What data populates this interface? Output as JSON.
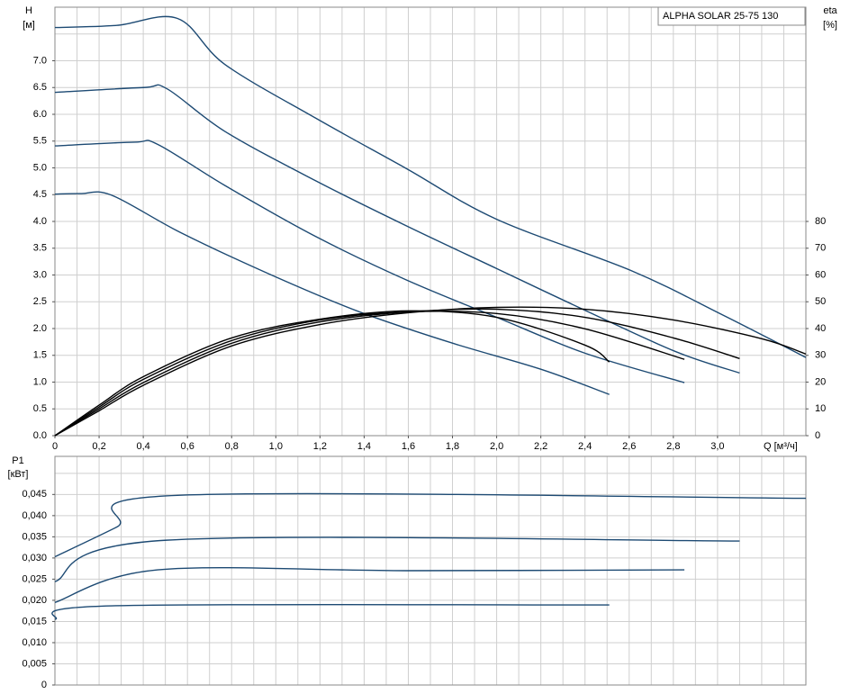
{
  "chart_data": [
    {
      "type": "line",
      "title": "ALPHA SOLAR 25-75  130",
      "ylabel": "H",
      "yunit": "[м]",
      "y2label": "eta",
      "y2unit": "[%]",
      "xlabel": "Q [м³/ч]",
      "xlim": [
        0,
        3.4
      ],
      "xticks": [
        0,
        {
          "value": 0.2,
          "label": "0,2"
        },
        {
          "value": 0.4,
          "label": "0,4"
        },
        {
          "value": 0.6,
          "label": "0,6"
        },
        {
          "value": 0.8,
          "label": "0,8"
        },
        {
          "value": 1.0,
          "label": "1,0"
        },
        {
          "value": 1.2,
          "label": "1,2"
        },
        {
          "value": 1.4,
          "label": "1,4"
        },
        {
          "value": 1.6,
          "label": "1,6"
        },
        {
          "value": 1.8,
          "label": "1,8"
        },
        {
          "value": 2.0,
          "label": "2,0"
        },
        {
          "value": 2.2,
          "label": "2,2"
        },
        {
          "value": 2.4,
          "label": "2,4"
        },
        {
          "value": 2.6,
          "label": "2,6"
        },
        {
          "value": 2.8,
          "label": "2,8"
        },
        {
          "value": 3.0,
          "label": "3,0"
        }
      ],
      "ylim": [
        0,
        8
      ],
      "yticks": [
        {
          "value": 0,
          "label": "0.0"
        },
        0.5,
        {
          "value": 1,
          "label": "1.0"
        },
        1.5,
        {
          "value": 2,
          "label": "2.0"
        },
        2.5,
        {
          "value": 3,
          "label": "3.0"
        },
        3.5,
        {
          "value": 4,
          "label": "4.0"
        },
        4.5,
        {
          "value": 5,
          "label": "5.0"
        },
        5.5,
        {
          "value": 6,
          "label": "6.0"
        },
        6.5,
        {
          "value": 7,
          "label": "7.0"
        }
      ],
      "y2lim": [
        0,
        160
      ],
      "y2ticks": [
        0,
        10,
        20,
        30,
        40,
        50,
        60,
        70,
        80
      ],
      "grid": true,
      "series": [
        {
          "color": "#1d4a73",
          "x": [
            0,
            0.28,
            0.555,
            0.77,
            1.18,
            1.59,
            2.0,
            2.61,
            3.02,
            3.4
          ],
          "values": [
            7.62,
            7.66,
            7.79,
            6.93,
            5.93,
            4.99,
            4.04,
            3.08,
            2.26,
            1.46
          ]
        },
        {
          "color": "#1d4a73",
          "x": [
            0,
            0.4,
            0.506,
            0.77,
            1.18,
            1.59,
            2.0,
            2.4,
            2.81,
            3.1
          ],
          "values": [
            6.41,
            6.5,
            6.48,
            5.68,
            4.76,
            3.92,
            3.12,
            2.34,
            1.57,
            1.17
          ]
        },
        {
          "color": "#1d4a73",
          "x": [
            0,
            0.36,
            0.465,
            0.77,
            1.18,
            1.59,
            2.0,
            2.4,
            2.85
          ],
          "values": [
            5.41,
            5.48,
            5.44,
            4.67,
            3.72,
            2.91,
            2.21,
            1.54,
            0.99
          ]
        },
        {
          "color": "#1d4a73",
          "x": [
            0,
            0.12,
            0.257,
            0.57,
            0.98,
            1.38,
            1.79,
            2.2,
            2.51
          ],
          "values": [
            4.51,
            4.52,
            4.49,
            3.79,
            3.0,
            2.31,
            1.74,
            1.24,
            0.77
          ]
        },
        {
          "color": "#000000",
          "axis": "y2",
          "x": [
            0,
            0.2,
            0.4,
            0.8,
            1.2,
            1.6,
            2.0,
            2.4,
            2.51
          ],
          "values": [
            0,
            11.4,
            22,
            36.5,
            43.5,
            46.6,
            44.2,
            33.8,
            27.5
          ]
        },
        {
          "color": "#000000",
          "axis": "y2",
          "x": [
            0,
            0.2,
            0.4,
            0.8,
            1.2,
            1.6,
            2.0,
            2.4,
            2.85
          ],
          "values": [
            0,
            10.7,
            21,
            35.5,
            43.2,
            46.2,
            45.6,
            39.9,
            28.5
          ]
        },
        {
          "color": "#000000",
          "axis": "y2",
          "x": [
            0,
            0.2,
            0.4,
            0.8,
            1.2,
            1.6,
            2.0,
            2.4,
            2.8,
            3.1
          ],
          "values": [
            0,
            10.0,
            19.8,
            34.5,
            42.5,
            46.2,
            47.2,
            44.2,
            36.5,
            28.8
          ]
        },
        {
          "color": "#000000",
          "axis": "y2",
          "x": [
            0,
            0.2,
            0.4,
            0.8,
            1.2,
            1.6,
            2.0,
            2.4,
            2.8,
            3.2,
            3.4
          ],
          "values": [
            0,
            9.3,
            18.8,
            33.5,
            41.5,
            45.9,
            47.9,
            47.2,
            43.2,
            36.2,
            30.5
          ]
        }
      ]
    },
    {
      "type": "line",
      "ylabel": "P1",
      "yunit": "[кВт]",
      "xlim": [
        0,
        3.4
      ],
      "ylim": [
        0,
        0.054
      ],
      "yticks": [
        0,
        {
          "value": 0.005,
          "label": "0,005"
        },
        {
          "value": 0.01,
          "label": "0,010"
        },
        {
          "value": 0.015,
          "label": "0,015"
        },
        {
          "value": 0.02,
          "label": "0,020"
        },
        {
          "value": 0.025,
          "label": "0,025"
        },
        {
          "value": 0.03,
          "label": "0,030"
        },
        {
          "value": 0.035,
          "label": "0,035"
        },
        {
          "value": 0.04,
          "label": "0,040"
        },
        {
          "value": 0.045,
          "label": "0,045"
        }
      ],
      "grid": true,
      "series": [
        {
          "color": "#1d4a73",
          "x": [
            0,
            0.28,
            0.555,
            3.4
          ],
          "values": [
            0.0303,
            0.0373,
            0.0448,
            0.0441
          ]
        },
        {
          "color": "#1d4a73",
          "x": [
            0,
            0.506,
            3.1
          ],
          "values": [
            0.0244,
            0.0342,
            0.034
          ]
        },
        {
          "color": "#1d4a73",
          "x": [
            0,
            0.465,
            1.59,
            2.85
          ],
          "values": [
            0.0195,
            0.0272,
            0.027,
            0.0272
          ]
        },
        {
          "color": "#1d4a73",
          "x": [
            0,
            0.257,
            2.51
          ],
          "values": [
            0.0155,
            0.0187,
            0.0189
          ]
        }
      ]
    }
  ]
}
